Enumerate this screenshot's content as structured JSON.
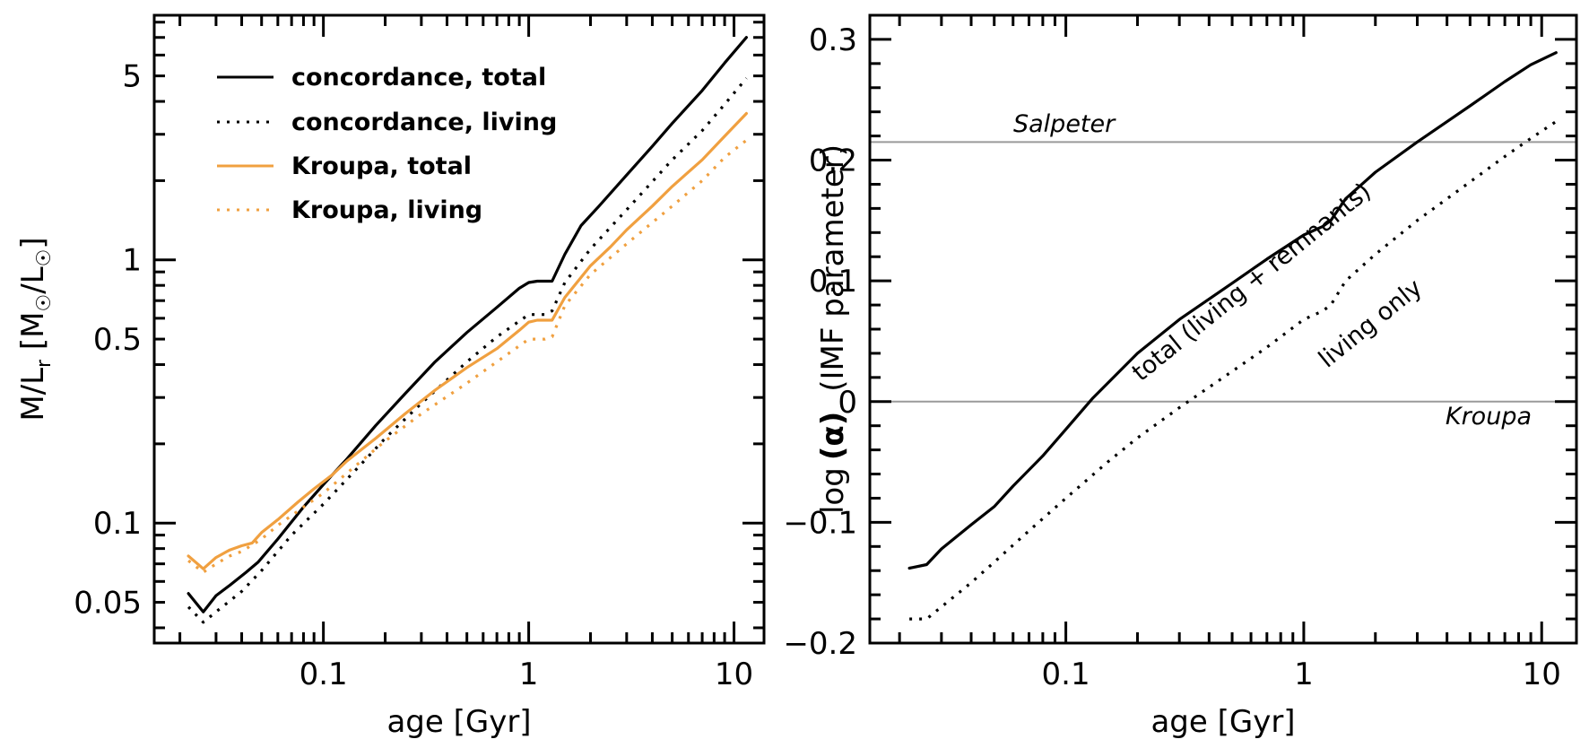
{
  "chart_data": [
    {
      "type": "line",
      "panel": "left",
      "xscale": "log",
      "yscale": "log",
      "xlabel": "age [Gyr]",
      "ylabel": {
        "main": "M/L",
        "sub": "r",
        "units_open": " [M",
        "units_mid": "/L",
        "units_close": "]"
      },
      "xlim": [
        0.015,
        14
      ],
      "ylim": [
        0.035,
        8.5
      ],
      "xticks": [
        {
          "value": 0.1,
          "label": "0.1"
        },
        {
          "value": 1,
          "label": "1"
        },
        {
          "value": 10,
          "label": "10"
        }
      ],
      "yticks": [
        {
          "value": 0.05,
          "label": "0.05"
        },
        {
          "value": 0.1,
          "label": "0.1"
        },
        {
          "value": 0.5,
          "label": "0.5"
        },
        {
          "value": 1,
          "label": "1"
        },
        {
          "value": 5,
          "label": "5"
        }
      ],
      "legend": {
        "placement": "top-left",
        "entries": [
          {
            "label": "concordance, total",
            "color": "#000000",
            "style": "solid"
          },
          {
            "label": "concordance, living",
            "color": "#000000",
            "style": "dotted"
          },
          {
            "label": "Kroupa, total",
            "color": "#f0a040",
            "style": "solid"
          },
          {
            "label": "Kroupa, living",
            "color": "#f0a040",
            "style": "dotted"
          }
        ]
      },
      "series": [
        {
          "name": "concordance, total",
          "color": "#000000",
          "style": "solid",
          "x": [
            0.022,
            0.026,
            0.03,
            0.035,
            0.042,
            0.048,
            0.06,
            0.08,
            0.1,
            0.13,
            0.18,
            0.25,
            0.35,
            0.5,
            0.7,
            0.9,
            1.0,
            1.1,
            1.3,
            1.5,
            1.8,
            2.2,
            3.0,
            4.0,
            5.0,
            7.0,
            9.0,
            11.5
          ],
          "y": [
            0.054,
            0.046,
            0.053,
            0.058,
            0.065,
            0.071,
            0.087,
            0.115,
            0.14,
            0.175,
            0.235,
            0.31,
            0.41,
            0.53,
            0.66,
            0.78,
            0.82,
            0.83,
            0.83,
            1.05,
            1.35,
            1.6,
            2.1,
            2.7,
            3.3,
            4.4,
            5.6,
            7.0
          ]
        },
        {
          "name": "concordance, living",
          "color": "#000000",
          "style": "dotted",
          "x": [
            0.022,
            0.026,
            0.03,
            0.04,
            0.05,
            0.07,
            0.1,
            0.15,
            0.2,
            0.3,
            0.5,
            0.7,
            1.0,
            1.2,
            1.3,
            1.5,
            2.0,
            3.0,
            5.0,
            7.0,
            9.0,
            11.5
          ],
          "y": [
            0.048,
            0.042,
            0.046,
            0.055,
            0.066,
            0.09,
            0.118,
            0.165,
            0.21,
            0.285,
            0.41,
            0.51,
            0.62,
            0.62,
            0.64,
            0.82,
            1.1,
            1.55,
            2.4,
            3.1,
            3.9,
            4.9
          ]
        },
        {
          "name": "Kroupa, total",
          "color": "#f0a040",
          "style": "solid",
          "x": [
            0.022,
            0.026,
            0.03,
            0.035,
            0.04,
            0.045,
            0.05,
            0.06,
            0.075,
            0.09,
            0.11,
            0.13,
            0.18,
            0.25,
            0.35,
            0.5,
            0.7,
            0.9,
            1.0,
            1.1,
            1.3,
            1.5,
            2.0,
            2.5,
            3.0,
            4.0,
            5.0,
            7.0,
            9.0,
            11.5
          ],
          "y": [
            0.075,
            0.067,
            0.074,
            0.079,
            0.082,
            0.084,
            0.092,
            0.103,
            0.12,
            0.135,
            0.152,
            0.172,
            0.21,
            0.26,
            0.32,
            0.39,
            0.46,
            0.54,
            0.58,
            0.59,
            0.59,
            0.72,
            0.95,
            1.12,
            1.3,
            1.6,
            1.9,
            2.4,
            2.95,
            3.6
          ]
        },
        {
          "name": "Kroupa, living",
          "color": "#f0a040",
          "style": "dotted",
          "x": [
            0.022,
            0.026,
            0.03,
            0.035,
            0.04,
            0.05,
            0.06,
            0.08,
            0.1,
            0.15,
            0.2,
            0.3,
            0.5,
            0.7,
            1.0,
            1.2,
            1.3,
            1.5,
            2.0,
            3.0,
            5.0,
            7.0,
            9.0,
            11.5
          ],
          "y": [
            0.072,
            0.065,
            0.07,
            0.075,
            0.078,
            0.087,
            0.098,
            0.115,
            0.13,
            0.17,
            0.205,
            0.26,
            0.34,
            0.41,
            0.5,
            0.5,
            0.51,
            0.67,
            0.88,
            1.15,
            1.6,
            2.0,
            2.45,
            2.85
          ]
        }
      ]
    },
    {
      "type": "line",
      "panel": "right",
      "xscale": "log",
      "yscale": "linear",
      "xlabel": "age [Gyr]",
      "ylabel": {
        "prefix": "log",
        "alpha": "(α)",
        "suffix": "(IMF parameter)"
      },
      "xlim": [
        0.015,
        14
      ],
      "ylim": [
        -0.2,
        0.32
      ],
      "xticks": [
        {
          "value": 0.1,
          "label": "0.1"
        },
        {
          "value": 1,
          "label": "1"
        },
        {
          "value": 10,
          "label": "10"
        }
      ],
      "yticks": [
        {
          "value": -0.2,
          "label": "−0.2"
        },
        {
          "value": -0.1,
          "label": "−0.1"
        },
        {
          "value": 0,
          "label": "0"
        },
        {
          "value": 0.1,
          "label": "0.1"
        },
        {
          "value": 0.2,
          "label": "0.2"
        },
        {
          "value": 0.3,
          "label": "0.3"
        }
      ],
      "reference_lines": [
        {
          "label": "Salpeter",
          "y": 0.215,
          "label_position": "top-left"
        },
        {
          "label": "Kroupa",
          "y": 0.0,
          "label_position": "bottom-right"
        }
      ],
      "annotations": [
        {
          "text": "total (living + remnants)",
          "near_series": "total"
        },
        {
          "text": "living only",
          "near_series": "living only"
        }
      ],
      "series": [
        {
          "name": "total",
          "color": "#000000",
          "style": "solid",
          "x": [
            0.022,
            0.026,
            0.03,
            0.04,
            0.05,
            0.06,
            0.08,
            0.1,
            0.13,
            0.2,
            0.3,
            0.5,
            0.7,
            1.0,
            1.2,
            1.3,
            1.5,
            2.0,
            3.0,
            5.0,
            7.0,
            9.0,
            11.5
          ],
          "y": [
            -0.138,
            -0.135,
            -0.122,
            -0.102,
            -0.087,
            -0.07,
            -0.045,
            -0.023,
            0.003,
            0.04,
            0.068,
            0.098,
            0.118,
            0.138,
            0.145,
            0.15,
            0.168,
            0.19,
            0.215,
            0.245,
            0.265,
            0.279,
            0.289
          ]
        },
        {
          "name": "living only",
          "color": "#000000",
          "style": "dotted",
          "x": [
            0.022,
            0.026,
            0.03,
            0.04,
            0.05,
            0.07,
            0.1,
            0.15,
            0.2,
            0.3,
            0.5,
            0.7,
            1.0,
            1.2,
            1.3,
            1.5,
            2.0,
            3.0,
            5.0,
            7.0,
            9.0,
            11.5
          ],
          "y": [
            -0.18,
            -0.18,
            -0.17,
            -0.15,
            -0.133,
            -0.107,
            -0.08,
            -0.05,
            -0.03,
            -0.005,
            0.025,
            0.045,
            0.068,
            0.075,
            0.08,
            0.1,
            0.122,
            0.15,
            0.182,
            0.203,
            0.218,
            0.232
          ]
        }
      ]
    }
  ]
}
